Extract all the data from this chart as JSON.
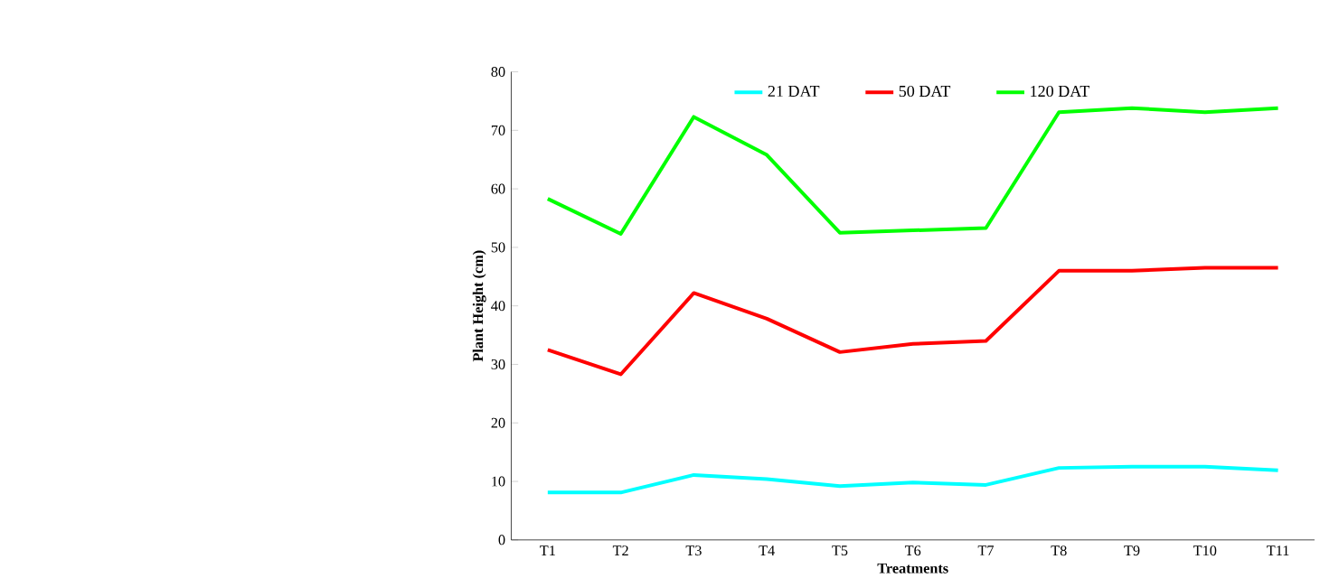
{
  "chart_data": {
    "type": "line",
    "xlabel": "Treatments",
    "ylabel": "Plant Height (cm)",
    "categories": [
      "T1",
      "T2",
      "T3",
      "T4",
      "T5",
      "T6",
      "T7",
      "T8",
      "T9",
      "T10",
      "T11"
    ],
    "series": [
      {
        "name": "21 DAT",
        "color": "#00ffff",
        "values": [
          8.1,
          8.1,
          11.1,
          10.4,
          9.2,
          9.8,
          9.4,
          12.3,
          12.5,
          12.5,
          11.9
        ]
      },
      {
        "name": "50 DAT",
        "color": "#ff0000",
        "values": [
          32.5,
          28.3,
          42.2,
          37.8,
          32.1,
          33.5,
          34.0,
          46.0,
          46.0,
          46.5,
          46.5
        ]
      },
      {
        "name": "120 DAT",
        "color": "#00ff00",
        "values": [
          58.3,
          52.3,
          72.3,
          65.8,
          52.5,
          52.9,
          53.3,
          73.1,
          73.8,
          73.1,
          73.8
        ]
      }
    ],
    "ylim": [
      0,
      80
    ],
    "yticks": [
      0,
      10,
      20,
      30,
      40,
      50,
      60,
      70,
      80
    ],
    "grid": false,
    "legend": "top",
    "marker": "none",
    "line_style": "solid"
  }
}
